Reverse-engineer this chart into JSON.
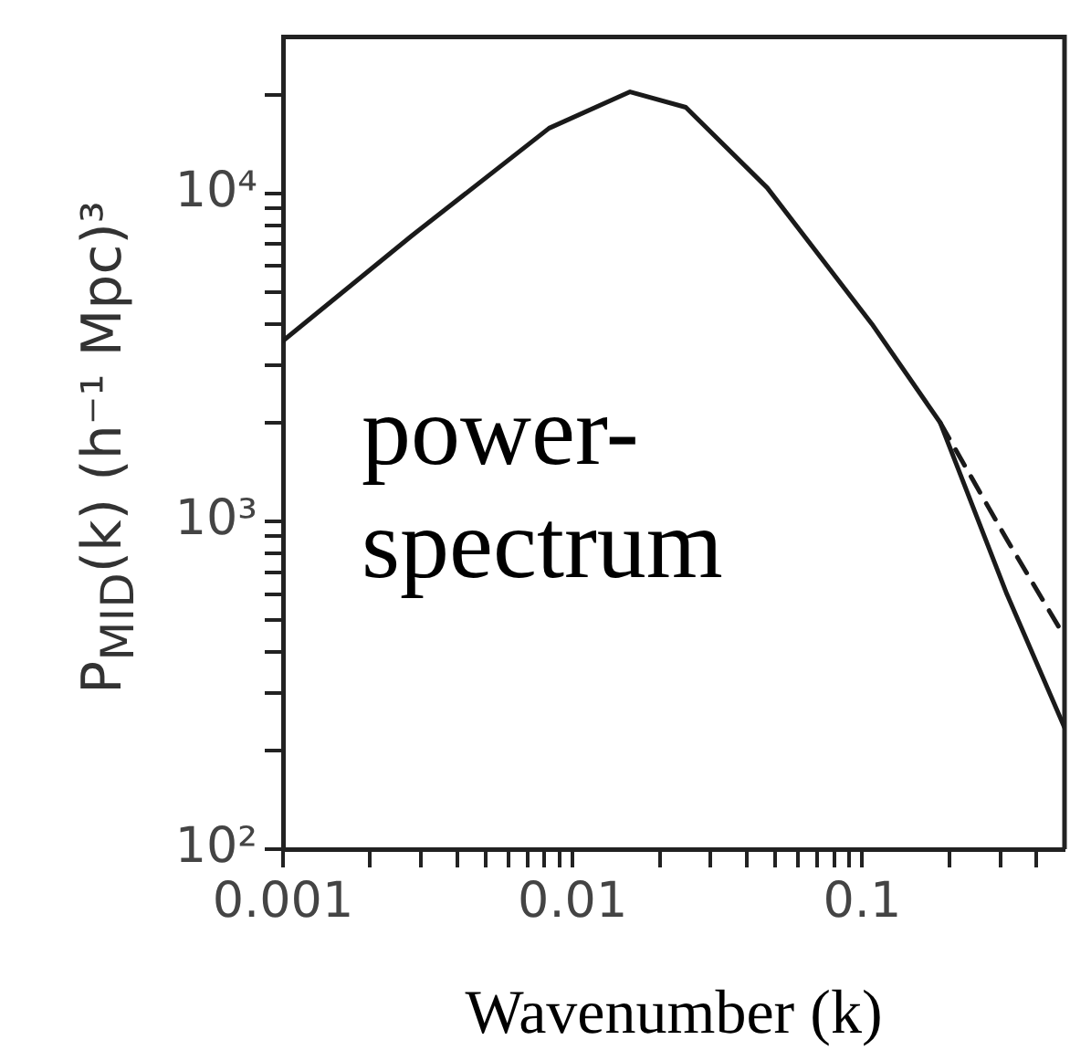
{
  "chart_data": {
    "type": "line",
    "xlabel": "Wavenumber (k)",
    "ylabel": "P$_{MID}$(k) (h⁻¹ Mpc)³",
    "annotations": [
      "power-spectrum"
    ],
    "log": "xy",
    "grid": false,
    "legend": false,
    "marker": "none",
    "xlim": [
      0.001,
      0.5
    ],
    "ylim": [
      100,
      30000
    ],
    "xticks": [
      0.001,
      {
        "value": 0.002,
        "label": null
      },
      {
        "value": 0.003,
        "label": null
      },
      {
        "value": 0.004,
        "label": null
      },
      {
        "value": 0.005,
        "label": null
      },
      {
        "value": 0.006,
        "label": null
      },
      {
        "value": 0.007,
        "label": null
      },
      {
        "value": 0.008,
        "label": null
      },
      {
        "value": 0.009,
        "label": null
      },
      0.01,
      {
        "value": 0.02,
        "label": null
      },
      {
        "value": 0.03,
        "label": null
      },
      {
        "value": 0.04,
        "label": null
      },
      {
        "value": 0.05,
        "label": null
      },
      {
        "value": 0.06,
        "label": null
      },
      {
        "value": 0.07,
        "label": null
      },
      {
        "value": 0.08,
        "label": null
      },
      {
        "value": 0.09,
        "label": null
      },
      0.1,
      {
        "value": 0.2,
        "label": null
      },
      {
        "value": 0.3,
        "label": null
      },
      {
        "value": 0.4,
        "label": null
      }
    ],
    "yticks": [
      {
        "value": 100,
        "label": "10²"
      },
      {
        "value": 200,
        "label": null
      },
      {
        "value": 300,
        "label": null
      },
      {
        "value": 400,
        "label": null
      },
      {
        "value": 500,
        "label": null
      },
      {
        "value": 600,
        "label": null
      },
      {
        "value": 700,
        "label": null
      },
      {
        "value": 800,
        "label": null
      },
      {
        "value": 900,
        "label": null
      },
      {
        "value": 1000,
        "label": "10³"
      },
      {
        "value": 2000,
        "label": null
      },
      {
        "value": 3000,
        "label": null
      },
      {
        "value": 4000,
        "label": null
      },
      {
        "value": 5000,
        "label": null
      },
      {
        "value": 6000,
        "label": null
      },
      {
        "value": 7000,
        "label": null
      },
      {
        "value": 8000,
        "label": null
      },
      {
        "value": 9000,
        "label": null
      },
      {
        "value": 10000,
        "label": "10⁴"
      },
      {
        "value": 20000,
        "label": null
      }
    ],
    "series": [
      {
        "color": "#1a1a1a",
        "line_style": "solid",
        "x": [
          0.001,
          0.00277,
          0.0083,
          0.0158,
          0.0246,
          0.047,
          0.108,
          0.186,
          0.316,
          0.5
        ],
        "values": [
          3550,
          7400,
          15800,
          20400,
          18300,
          10400,
          4000,
          2000,
          600,
          235
        ]
      },
      {
        "color": "#1a1a1a",
        "line_style": "dashed",
        "x": [
          0.186,
          0.316,
          0.5
        ],
        "values": [
          2000,
          880,
          445
        ]
      }
    ]
  }
}
